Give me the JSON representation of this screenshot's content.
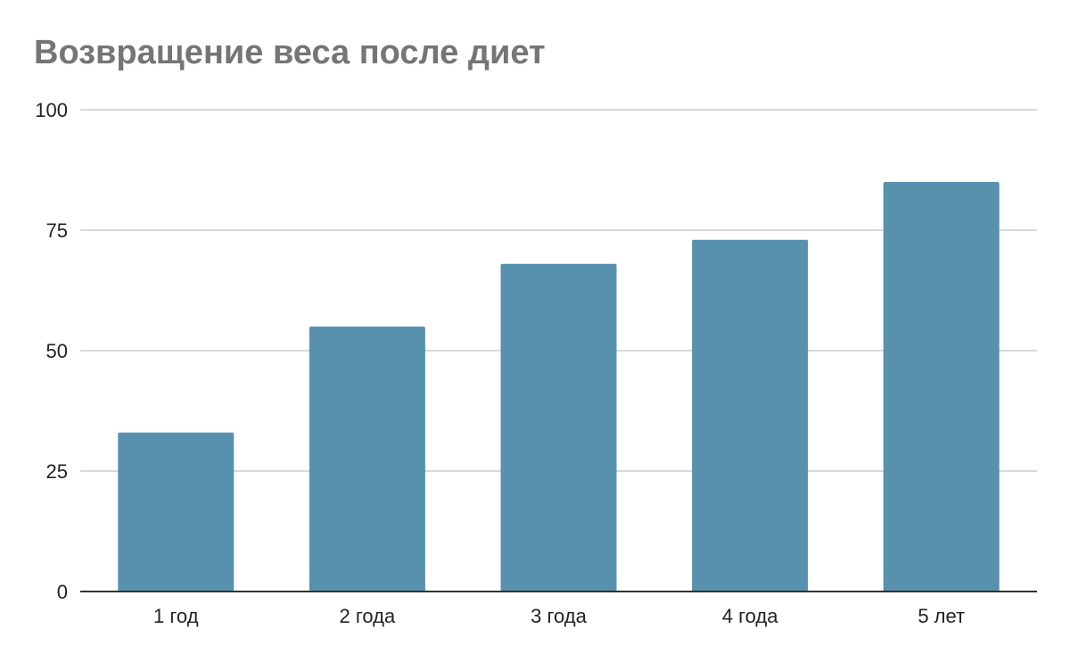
{
  "chart_data": {
    "type": "bar",
    "title": "Возвращение веса после диет",
    "xlabel": "",
    "ylabel": "",
    "categories": [
      "1 год",
      "2 года",
      "3 года",
      "4 года",
      "5 лет"
    ],
    "values": [
      33,
      55,
      68,
      73,
      85
    ],
    "ylim": [
      0,
      100
    ],
    "yticks": [
      "0",
      "25",
      "50",
      "75",
      "100"
    ],
    "ytick_values": [
      0,
      25,
      50,
      75,
      100
    ],
    "grid": true,
    "legend": "none",
    "colors": {
      "bar": "#5891ae",
      "grid": "#cccccc",
      "axis": "#333333",
      "title": "#757575"
    }
  }
}
